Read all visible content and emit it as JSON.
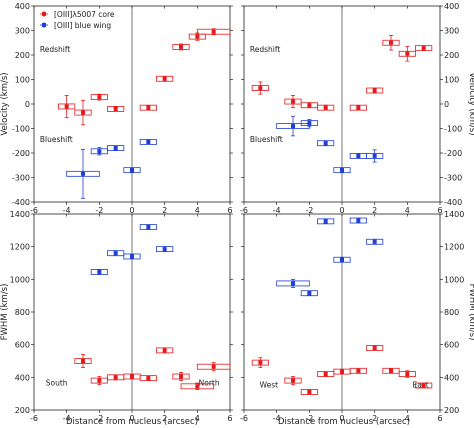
{
  "figure": {
    "xlabel": "Distance from nucleus (arcsec)",
    "colors": {
      "core": "#e41a1c",
      "wing": "#1f3fd6",
      "axis": "#222222",
      "zero_line": "#555555"
    },
    "legend": [
      {
        "label": "[OIII]λ5007 core",
        "series": "core"
      },
      {
        "label": "[OIII] blue wing",
        "series": "wing"
      }
    ]
  },
  "chart_data": [
    {
      "type": "scatter",
      "panel": "top-left",
      "ylabel": "Velocity (km/s)",
      "xlim": [
        -6,
        6
      ],
      "ylim": [
        -400,
        400
      ],
      "xticks": [
        -6,
        -4,
        -2,
        0,
        2,
        4,
        6
      ],
      "yticks": [
        -400,
        -300,
        -200,
        -100,
        0,
        100,
        200,
        300,
        400
      ],
      "legend": "top-left",
      "notes": [
        "Redshift",
        "Blueshift"
      ],
      "series": [
        {
          "key": "core",
          "points": [
            {
              "x": -4,
              "y": -10,
              "xerr": 0.5,
              "yerr": 45
            },
            {
              "x": -3,
              "y": -35,
              "xerr": 0.5,
              "yerr": 50
            },
            {
              "x": -2,
              "y": 28,
              "xerr": 0.5,
              "yerr": 12
            },
            {
              "x": -1,
              "y": -20,
              "xerr": 0.5,
              "yerr": 8
            },
            {
              "x": 1,
              "y": -15,
              "xerr": 0.5,
              "yerr": 8
            },
            {
              "x": 2,
              "y": 103,
              "xerr": 0.5,
              "yerr": 10
            },
            {
              "x": 3,
              "y": 233,
              "xerr": 0.5,
              "yerr": 12
            },
            {
              "x": 4,
              "y": 275,
              "xerr": 0.5,
              "yerr": 15
            },
            {
              "x": 5,
              "y": 295,
              "xerr": 1.0,
              "yerr": 12
            }
          ]
        },
        {
          "key": "wing",
          "points": [
            {
              "x": -3,
              "y": -285,
              "xerr": 1.0,
              "yerr": 100
            },
            {
              "x": -2,
              "y": -193,
              "xerr": 0.5,
              "yerr": 15
            },
            {
              "x": -1,
              "y": -180,
              "xerr": 0.5,
              "yerr": 8
            },
            {
              "x": 0,
              "y": -270,
              "xerr": 0.5,
              "yerr": 8
            },
            {
              "x": 1,
              "y": -155,
              "xerr": 0.5,
              "yerr": 8
            }
          ]
        }
      ]
    },
    {
      "type": "scatter",
      "panel": "top-right",
      "ylabel": "Velocity (km/s)",
      "xlim": [
        -6,
        6
      ],
      "ylim": [
        -400,
        400
      ],
      "xticks": [
        -6,
        -4,
        -2,
        0,
        2,
        4,
        6
      ],
      "yticks": [
        -400,
        -300,
        -200,
        -100,
        0,
        100,
        200,
        300,
        400
      ],
      "notes": [
        "Redshift",
        "Blueshift"
      ],
      "series": [
        {
          "key": "core",
          "points": [
            {
              "x": -5,
              "y": 65,
              "xerr": 0.5,
              "yerr": 25
            },
            {
              "x": -3,
              "y": 10,
              "xerr": 0.5,
              "yerr": 25
            },
            {
              "x": -2,
              "y": -5,
              "xerr": 0.5,
              "yerr": 10
            },
            {
              "x": -1,
              "y": -15,
              "xerr": 0.5,
              "yerr": 10
            },
            {
              "x": 1,
              "y": -15,
              "xerr": 0.5,
              "yerr": 8
            },
            {
              "x": 2,
              "y": 55,
              "xerr": 0.5,
              "yerr": 10
            },
            {
              "x": 3,
              "y": 250,
              "xerr": 0.5,
              "yerr": 30
            },
            {
              "x": 4,
              "y": 205,
              "xerr": 0.5,
              "yerr": 30
            },
            {
              "x": 5,
              "y": 228,
              "xerr": 0.5,
              "yerr": 10
            }
          ]
        },
        {
          "key": "wing",
          "points": [
            {
              "x": -3,
              "y": -90,
              "xerr": 1.0,
              "yerr": 40
            },
            {
              "x": -2,
              "y": -78,
              "xerr": 0.5,
              "yerr": 15
            },
            {
              "x": -1,
              "y": -160,
              "xerr": 0.5,
              "yerr": 8
            },
            {
              "x": 0,
              "y": -270,
              "xerr": 0.5,
              "yerr": 8
            },
            {
              "x": 1,
              "y": -212,
              "xerr": 0.5,
              "yerr": 8
            },
            {
              "x": 2,
              "y": -212,
              "xerr": 0.5,
              "yerr": 25
            }
          ]
        }
      ]
    },
    {
      "type": "scatter",
      "panel": "bottom-left",
      "ylabel": "FWHM (km/s)",
      "xlim": [
        -6,
        6
      ],
      "ylim": [
        200,
        1400
      ],
      "xticks": [
        -6,
        -4,
        -2,
        0,
        2,
        4,
        6
      ],
      "yticks": [
        200,
        400,
        600,
        800,
        1000,
        1200,
        1400
      ],
      "notes": [
        "South",
        "North"
      ],
      "series": [
        {
          "key": "core",
          "points": [
            {
              "x": -3,
              "y": 500,
              "xerr": 0.5,
              "yerr": 40
            },
            {
              "x": -2,
              "y": 380,
              "xerr": 0.5,
              "yerr": 25
            },
            {
              "x": -1,
              "y": 400,
              "xerr": 0.5,
              "yerr": 15
            },
            {
              "x": 0,
              "y": 405,
              "xerr": 0.5,
              "yerr": 12
            },
            {
              "x": 1,
              "y": 395,
              "xerr": 0.5,
              "yerr": 12
            },
            {
              "x": 2,
              "y": 565,
              "xerr": 0.5,
              "yerr": 15
            },
            {
              "x": 3,
              "y": 405,
              "xerr": 0.5,
              "yerr": 25
            },
            {
              "x": 4,
              "y": 345,
              "xerr": 1.0,
              "yerr": 20
            },
            {
              "x": 5,
              "y": 465,
              "xerr": 1.0,
              "yerr": 25
            }
          ]
        },
        {
          "key": "wing",
          "points": [
            {
              "x": -2,
              "y": 1045,
              "xerr": 0.5,
              "yerr": 15
            },
            {
              "x": -1,
              "y": 1160,
              "xerr": 0.5,
              "yerr": 15
            },
            {
              "x": 0,
              "y": 1140,
              "xerr": 0.5,
              "yerr": 12
            },
            {
              "x": 1,
              "y": 1320,
              "xerr": 0.5,
              "yerr": 12
            },
            {
              "x": 2,
              "y": 1185,
              "xerr": 0.5,
              "yerr": 15
            }
          ]
        }
      ]
    },
    {
      "type": "scatter",
      "panel": "bottom-right",
      "ylabel": "FWHM (km/s)",
      "xlim": [
        -6,
        6
      ],
      "ylim": [
        200,
        1400
      ],
      "xticks": [
        -6,
        -4,
        -2,
        0,
        2,
        4,
        6
      ],
      "yticks": [
        200,
        400,
        600,
        800,
        1000,
        1200,
        1400
      ],
      "notes": [
        "West",
        "East"
      ],
      "series": [
        {
          "key": "core",
          "points": [
            {
              "x": -5,
              "y": 490,
              "xerr": 0.5,
              "yerr": 30
            },
            {
              "x": -3,
              "y": 380,
              "xerr": 0.5,
              "yerr": 25
            },
            {
              "x": -2,
              "y": 310,
              "xerr": 0.5,
              "yerr": 12
            },
            {
              "x": -1,
              "y": 420,
              "xerr": 0.5,
              "yerr": 12
            },
            {
              "x": 0,
              "y": 435,
              "xerr": 0.5,
              "yerr": 12
            },
            {
              "x": 1,
              "y": 440,
              "xerr": 0.5,
              "yerr": 10
            },
            {
              "x": 2,
              "y": 580,
              "xerr": 0.5,
              "yerr": 12
            },
            {
              "x": 3,
              "y": 440,
              "xerr": 0.5,
              "yerr": 12
            },
            {
              "x": 4,
              "y": 420,
              "xerr": 0.5,
              "yerr": 20
            },
            {
              "x": 5,
              "y": 350,
              "xerr": 0.5,
              "yerr": 12
            }
          ]
        },
        {
          "key": "wing",
          "points": [
            {
              "x": -3,
              "y": 975,
              "xerr": 1.0,
              "yerr": 25
            },
            {
              "x": -2,
              "y": 915,
              "xerr": 0.5,
              "yerr": 12
            },
            {
              "x": -1,
              "y": 1355,
              "xerr": 0.5,
              "yerr": 12
            },
            {
              "x": 0,
              "y": 1120,
              "xerr": 0.5,
              "yerr": 12
            },
            {
              "x": 1,
              "y": 1360,
              "xerr": 0.5,
              "yerr": 12
            },
            {
              "x": 2,
              "y": 1230,
              "xerr": 0.5,
              "yerr": 15
            }
          ]
        }
      ]
    }
  ]
}
